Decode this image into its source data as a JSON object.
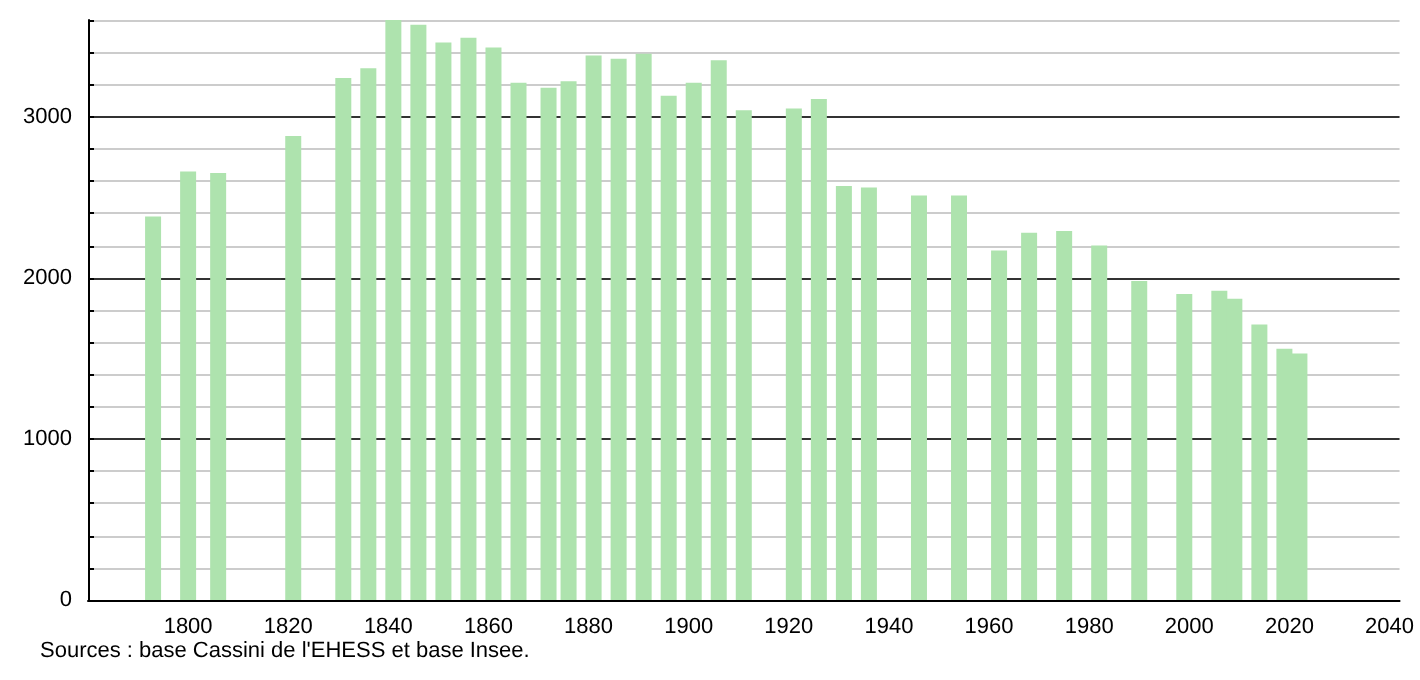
{
  "chart_data": {
    "type": "bar",
    "x": [
      1793,
      1800,
      1806,
      1821,
      1831,
      1836,
      1841,
      1846,
      1851,
      1856,
      1861,
      1866,
      1872,
      1876,
      1881,
      1886,
      1891,
      1896,
      1901,
      1906,
      1911,
      1921,
      1926,
      1931,
      1936,
      1946,
      1954,
      1962,
      1968,
      1975,
      1982,
      1990,
      1999,
      2006,
      2009,
      2014,
      2019,
      2022
    ],
    "values": [
      2380,
      2660,
      2650,
      2880,
      3240,
      3300,
      3600,
      3570,
      3460,
      3490,
      3430,
      3210,
      3180,
      3220,
      3380,
      3360,
      3390,
      3130,
      3210,
      3350,
      3040,
      3050,
      3110,
      2570,
      2560,
      2510,
      2510,
      2170,
      2280,
      2290,
      2200,
      1980,
      1900,
      1920,
      1870,
      1710,
      1560,
      1530
    ],
    "color": "#aee3ae",
    "xlim": [
      1780,
      2042
    ],
    "xticks": [
      1800,
      1820,
      1840,
      1860,
      1880,
      1900,
      1920,
      1940,
      1960,
      1980,
      2000,
      2020,
      2040
    ],
    "ylim": [
      0,
      3600
    ],
    "yticks": [
      0,
      {
        "value": 200,
        "label": null
      },
      {
        "value": 400,
        "label": null
      },
      {
        "value": 600,
        "label": null
      },
      {
        "value": 800,
        "label": null
      },
      1000,
      {
        "value": 1200,
        "label": null
      },
      {
        "value": 1400,
        "label": null
      },
      {
        "value": 1600,
        "label": null
      },
      {
        "value": 1800,
        "label": null
      },
      2000,
      {
        "value": 2200,
        "label": null
      },
      {
        "value": 2400,
        "label": null
      },
      {
        "value": 2600,
        "label": null
      },
      {
        "value": 2800,
        "label": null
      },
      3000,
      {
        "value": 3200,
        "label": null
      },
      {
        "value": 3400,
        "label": null
      },
      {
        "value": 3600,
        "label": null
      }
    ],
    "grid": "y",
    "annotations": [
      "Sources : base Cassini de l'EHESS et base Insee."
    ]
  }
}
